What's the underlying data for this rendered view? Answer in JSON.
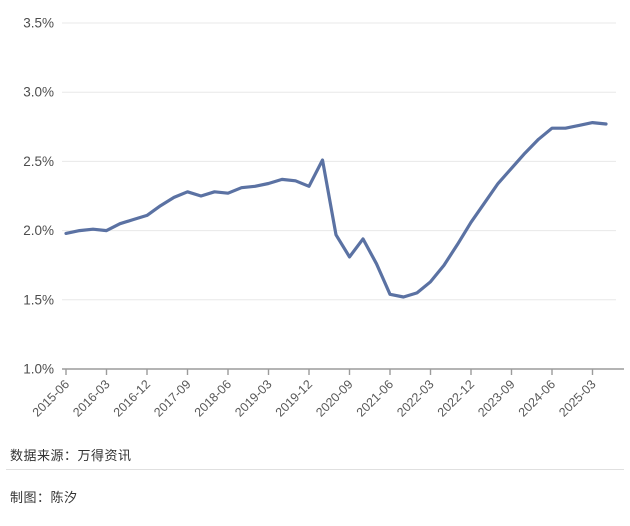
{
  "chart_data": {
    "type": "line",
    "x": [
      "2015-06",
      "2015-09",
      "2015-12",
      "2016-03",
      "2016-06",
      "2016-09",
      "2016-12",
      "2017-03",
      "2017-06",
      "2017-09",
      "2017-12",
      "2018-03",
      "2018-06",
      "2018-09",
      "2018-12",
      "2019-03",
      "2019-06",
      "2019-09",
      "2019-12",
      "2020-03",
      "2020-06",
      "2020-09",
      "2020-12",
      "2021-03",
      "2021-06",
      "2021-09",
      "2021-12",
      "2022-03",
      "2022-06",
      "2022-09",
      "2022-12",
      "2023-03",
      "2023-06",
      "2023-09",
      "2023-12",
      "2024-03",
      "2024-06",
      "2024-09",
      "2024-12",
      "2025-03",
      "2025-06"
    ],
    "values": [
      1.98,
      2.0,
      2.01,
      2.0,
      2.05,
      2.08,
      2.11,
      2.18,
      2.24,
      2.28,
      2.25,
      2.28,
      2.27,
      2.31,
      2.32,
      2.34,
      2.37,
      2.36,
      2.32,
      2.51,
      1.97,
      1.81,
      1.94,
      1.76,
      1.54,
      1.52,
      1.55,
      1.63,
      1.75,
      1.9,
      2.06,
      2.2,
      2.34,
      2.45,
      2.56,
      2.66,
      2.74,
      2.74,
      2.76,
      2.78,
      2.77
    ],
    "unit": "%",
    "title": "",
    "xlabel": "",
    "ylabel": "",
    "ylim": [
      1.0,
      3.5
    ],
    "y_ticks": [
      3.5,
      3.0,
      2.5,
      2.0,
      1.5,
      1.0
    ],
    "y_tick_labels": [
      "3.5%",
      "3.0%",
      "2.5%",
      "2.0%",
      "1.5%",
      "1.0%"
    ],
    "x_tick_labels": [
      "2015-06",
      "2016-03",
      "2016-12",
      "2017-09",
      "2018-06",
      "2019-03",
      "2019-12",
      "2020-09",
      "2021-06",
      "2022-03",
      "2022-12",
      "2023-09",
      "2024-06",
      "2025-03"
    ],
    "x_tick_step": 3,
    "grid": "horizontal",
    "legend": "none"
  },
  "colors": {
    "line": "#5b72a3",
    "gridline": "#e8e8e8",
    "axis": "#9b9b9b",
    "y_label": "#4d4d4d",
    "x_label": "#595959",
    "footer_text": "#333333"
  },
  "footer": {
    "source": "数据来源：万得资讯",
    "credit": "制图：陈汐"
  }
}
